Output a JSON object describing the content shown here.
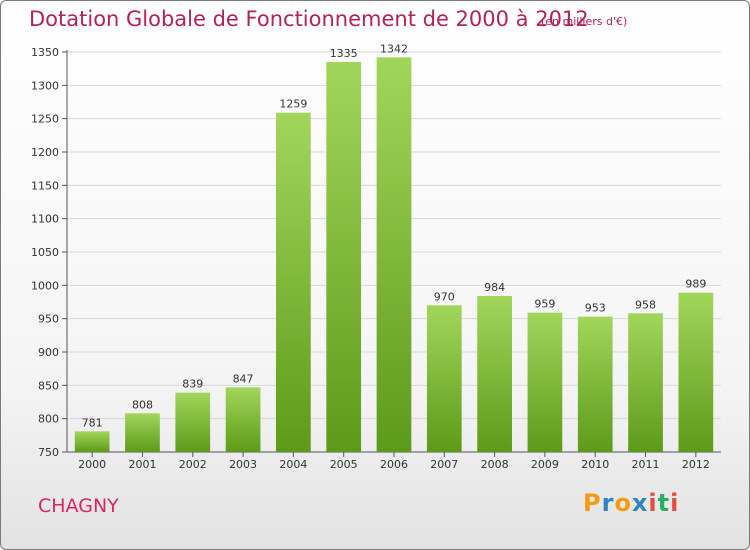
{
  "header": {
    "title": "Dotation Globale de Fonctionnement de 2000 à 2012",
    "subtitle": "(en milliers d'€)"
  },
  "footer": {
    "city": "CHAGNY",
    "logo": {
      "letters": [
        "P",
        "r",
        "o",
        "x",
        "i",
        "t",
        "i"
      ],
      "colors": [
        "#f39c12",
        "#2e86c1",
        "#f39c12",
        "#2e86c1",
        "#e74c3c",
        "#27ae60",
        "#e74c3c"
      ]
    }
  },
  "chart_data": {
    "type": "bar",
    "categories": [
      "2000",
      "2001",
      "2002",
      "2003",
      "2004",
      "2005",
      "2006",
      "2007",
      "2008",
      "2009",
      "2010",
      "2011",
      "2012"
    ],
    "values": [
      781,
      808,
      839,
      847,
      1259,
      1335,
      1342,
      970,
      984,
      959,
      953,
      958,
      989
    ],
    "title": "Dotation Globale de Fonctionnement de 2000 à 2012",
    "subtitle": "(en milliers d'€)",
    "ylim": [
      750,
      1350
    ],
    "yticks": [
      750,
      800,
      850,
      900,
      950,
      1000,
      1050,
      1100,
      1150,
      1200,
      1250,
      1300,
      1350
    ],
    "grid": true,
    "bar_color_top": "#a2d65a",
    "bar_color_bottom": "#5e9a1a"
  }
}
